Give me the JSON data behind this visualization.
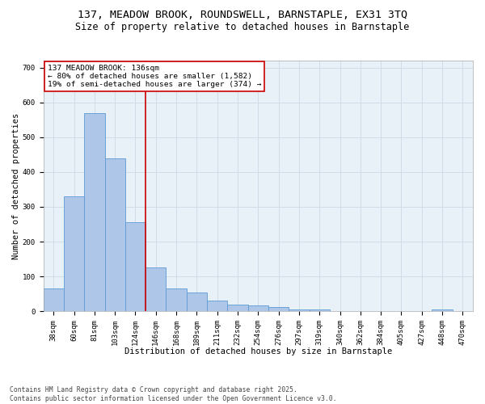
{
  "title_line1": "137, MEADOW BROOK, ROUNDSWELL, BARNSTAPLE, EX31 3TQ",
  "title_line2": "Size of property relative to detached houses in Barnstaple",
  "categories": [
    "38sqm",
    "60sqm",
    "81sqm",
    "103sqm",
    "124sqm",
    "146sqm",
    "168sqm",
    "189sqm",
    "211sqm",
    "232sqm",
    "254sqm",
    "276sqm",
    "297sqm",
    "319sqm",
    "340sqm",
    "362sqm",
    "384sqm",
    "405sqm",
    "427sqm",
    "448sqm",
    "470sqm"
  ],
  "values": [
    65,
    330,
    570,
    440,
    255,
    125,
    65,
    55,
    30,
    20,
    17,
    12,
    5,
    6,
    0,
    0,
    0,
    0,
    0,
    5,
    0
  ],
  "bar_color": "#aec6e8",
  "bar_edge_color": "#5b9bd5",
  "vline_color": "#cc0000",
  "annotation_text": "137 MEADOW BROOK: 136sqm\n← 80% of detached houses are smaller (1,582)\n19% of semi-detached houses are larger (374) →",
  "annotation_box_color": "#cc0000",
  "xlabel": "Distribution of detached houses by size in Barnstaple",
  "ylabel": "Number of detached properties",
  "ylim": [
    0,
    720
  ],
  "yticks": [
    0,
    100,
    200,
    300,
    400,
    500,
    600,
    700
  ],
  "grid_color": "#d0dce8",
  "background_color": "#e8f0f8",
  "footer_line1": "Contains HM Land Registry data © Crown copyright and database right 2025.",
  "footer_line2": "Contains public sector information licensed under the Open Government Licence v3.0.",
  "title_fontsize": 9.5,
  "subtitle_fontsize": 8.5,
  "axis_label_fontsize": 7.5,
  "tick_fontsize": 6.5,
  "annotation_fontsize": 6.8,
  "footer_fontsize": 5.8
}
